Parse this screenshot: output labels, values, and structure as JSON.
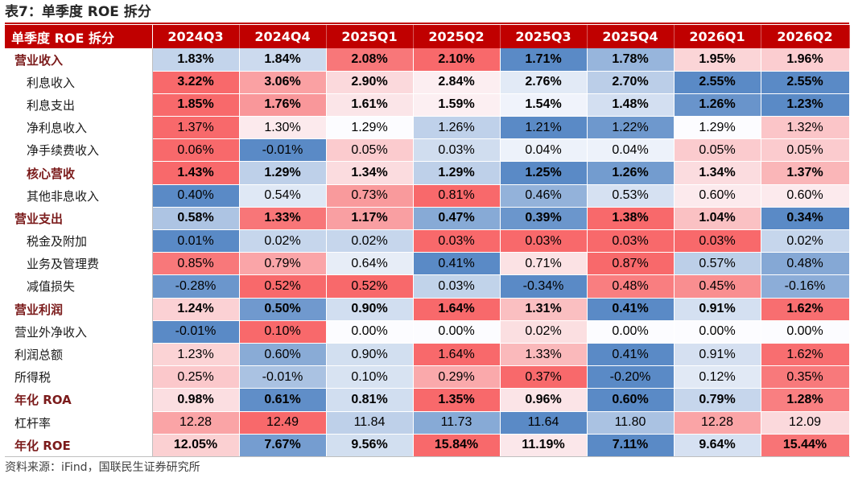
{
  "title": "表7：单季度 ROE 拆分",
  "source": "资料来源：iFind，国联民生证券研究所",
  "header": {
    "corner": "单季度 ROE 拆分",
    "periods": [
      "2024Q3",
      "2024Q4",
      "2025Q1",
      "2025Q2",
      "2025Q3",
      "2025Q4",
      "2026Q1",
      "2026Q2"
    ]
  },
  "colors": {
    "header_bg": "#c00000",
    "high": "#f8696b",
    "mid": "#fcfcff",
    "low": "#5a8ac6"
  },
  "rows": [
    {
      "label": "营业收入",
      "bold": true,
      "indent": false,
      "values": [
        "1.83%",
        "1.84%",
        "2.08%",
        "2.10%",
        "1.71%",
        "1.78%",
        "1.95%",
        "1.96%"
      ]
    },
    {
      "label": "利息收入",
      "bold": false,
      "indent": true,
      "strong_values": true,
      "values": [
        "3.22%",
        "3.06%",
        "2.90%",
        "2.84%",
        "2.76%",
        "2.70%",
        "2.55%",
        "2.55%"
      ]
    },
    {
      "label": "利息支出",
      "bold": false,
      "indent": true,
      "strong_values": true,
      "values": [
        "1.85%",
        "1.76%",
        "1.61%",
        "1.59%",
        "1.54%",
        "1.48%",
        "1.26%",
        "1.23%"
      ]
    },
    {
      "label": "净利息收入",
      "bold": false,
      "indent": true,
      "values": [
        "1.37%",
        "1.30%",
        "1.29%",
        "1.26%",
        "1.21%",
        "1.22%",
        "1.29%",
        "1.32%"
      ]
    },
    {
      "label": "净手续费收入",
      "bold": false,
      "indent": true,
      "values": [
        "0.06%",
        "-0.01%",
        "0.05%",
        "0.03%",
        "0.04%",
        "0.04%",
        "0.05%",
        "0.05%"
      ]
    },
    {
      "label": "核心营收",
      "bold": true,
      "indent": true,
      "values": [
        "1.43%",
        "1.29%",
        "1.34%",
        "1.29%",
        "1.25%",
        "1.26%",
        "1.34%",
        "1.37%"
      ]
    },
    {
      "label": "其他非息收入",
      "bold": false,
      "indent": true,
      "values": [
        "0.40%",
        "0.54%",
        "0.73%",
        "0.81%",
        "0.46%",
        "0.53%",
        "0.60%",
        "0.60%"
      ]
    },
    {
      "label": "营业支出",
      "bold": true,
      "indent": false,
      "values": [
        "0.58%",
        "1.33%",
        "1.17%",
        "0.47%",
        "0.39%",
        "1.38%",
        "1.04%",
        "0.34%"
      ]
    },
    {
      "label": "税金及附加",
      "bold": false,
      "indent": true,
      "values": [
        "0.01%",
        "0.02%",
        "0.02%",
        "0.03%",
        "0.03%",
        "0.03%",
        "0.03%",
        "0.02%"
      ]
    },
    {
      "label": "业务及管理费",
      "bold": false,
      "indent": true,
      "values": [
        "0.85%",
        "0.79%",
        "0.64%",
        "0.41%",
        "0.71%",
        "0.87%",
        "0.57%",
        "0.48%"
      ]
    },
    {
      "label": "减值损失",
      "bold": false,
      "indent": true,
      "values": [
        "-0.28%",
        "0.52%",
        "0.52%",
        "0.03%",
        "-0.34%",
        "0.48%",
        "0.45%",
        "-0.16%"
      ]
    },
    {
      "label": "营业利润",
      "bold": true,
      "indent": false,
      "values": [
        "1.24%",
        "0.50%",
        "0.90%",
        "1.64%",
        "1.31%",
        "0.41%",
        "0.91%",
        "1.62%"
      ]
    },
    {
      "label": "营业外净收入",
      "bold": false,
      "indent": false,
      "values": [
        "-0.01%",
        "0.10%",
        "0.00%",
        "0.00%",
        "0.02%",
        "0.00%",
        "0.00%",
        "0.00%"
      ]
    },
    {
      "label": "利润总额",
      "bold": false,
      "indent": false,
      "values": [
        "1.23%",
        "0.60%",
        "0.90%",
        "1.64%",
        "1.33%",
        "0.41%",
        "0.91%",
        "1.62%"
      ]
    },
    {
      "label": "所得税",
      "bold": false,
      "indent": false,
      "values": [
        "0.25%",
        "-0.01%",
        "0.10%",
        "0.29%",
        "0.37%",
        "-0.20%",
        "0.12%",
        "0.35%"
      ]
    },
    {
      "label": "年化 ROA",
      "bold": true,
      "indent": false,
      "values": [
        "0.98%",
        "0.61%",
        "0.81%",
        "1.35%",
        "0.96%",
        "0.60%",
        "0.79%",
        "1.28%"
      ]
    },
    {
      "label": "杠杆率",
      "bold": false,
      "indent": false,
      "values": [
        "12.28",
        "12.49",
        "11.84",
        "11.73",
        "11.64",
        "11.80",
        "12.28",
        "12.09"
      ]
    },
    {
      "label": "年化 ROE",
      "bold": true,
      "indent": false,
      "values": [
        "12.05%",
        "7.67%",
        "9.56%",
        "15.84%",
        "11.19%",
        "7.11%",
        "9.64%",
        "15.44%"
      ]
    }
  ]
}
